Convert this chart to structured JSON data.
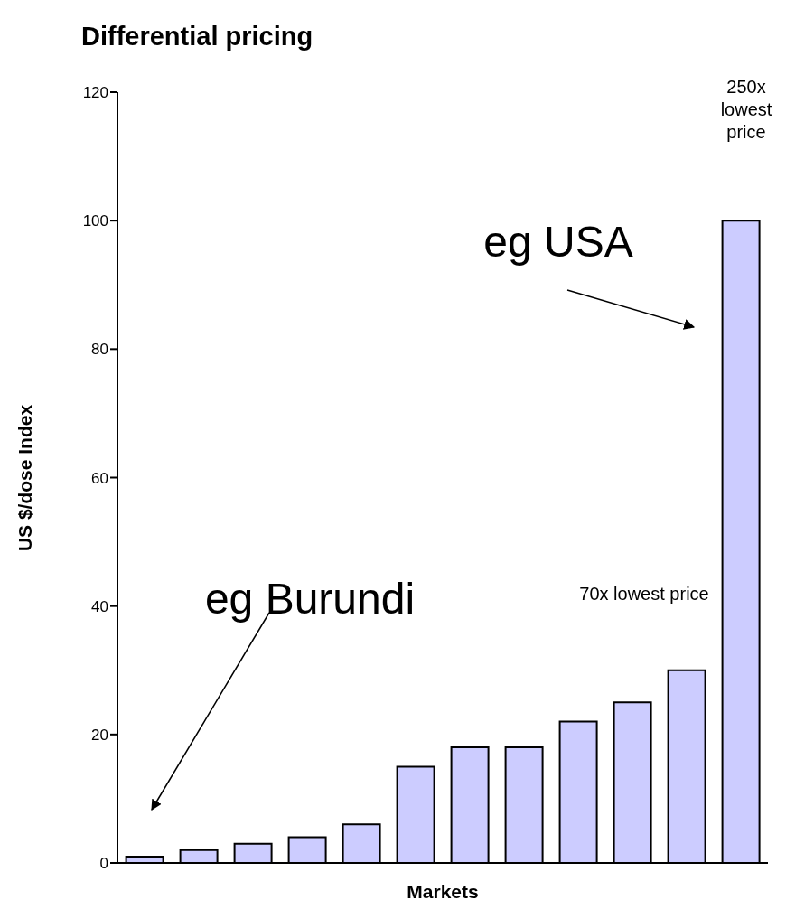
{
  "chart_data": {
    "type": "bar",
    "title": "Differential pricing",
    "xlabel": "Markets",
    "ylabel": "US $/dose Index",
    "categories": [
      null,
      null,
      null,
      null,
      null,
      null,
      null,
      null,
      null,
      null,
      null,
      null
    ],
    "values": [
      1,
      2,
      3,
      4,
      6,
      15,
      18,
      18,
      22,
      25,
      30,
      100
    ],
    "color": "#ccccff",
    "ylim": [
      0,
      120
    ],
    "yticks": [
      0,
      20,
      40,
      60,
      80,
      100,
      120
    ],
    "grid": false,
    "annotations": [
      "eg Burundi",
      "eg USA",
      "250x lowest price",
      "70x lowest price"
    ]
  }
}
